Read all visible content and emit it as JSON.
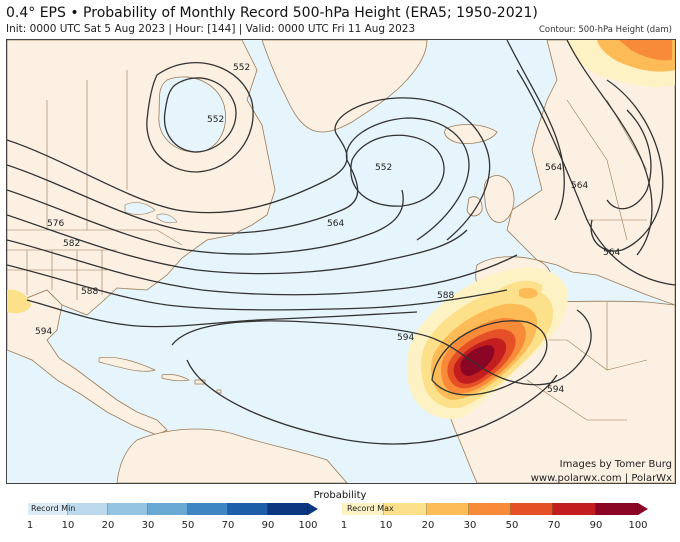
{
  "header": {
    "title": "0.4° EPS • Probability of Monthly Record 500-hPa Height (ERA5; 1950-2021)",
    "subtitle": "Init: 0000 UTC Sat 5 Aug 2023 | Hour: [144] | Valid: 0000 UTC Fri 11 Aug 2023",
    "contour_note": "Contour: 500-hPa Height (dam)"
  },
  "map": {
    "region": "North Atlantic, North America, Europe, North Africa",
    "colors": {
      "ocean": "#e6f4fb",
      "land": "#fbf0e2",
      "borders": "#9c7a56",
      "contours": "#333333"
    },
    "contour_labels": [
      "552",
      "552",
      "564",
      "564",
      "564",
      "576",
      "582",
      "588",
      "594",
      "594",
      "594",
      "552",
      "564",
      "588"
    ],
    "anomaly_region": "Northwest Africa / Iberia — highest probability (90-100%)"
  },
  "credits": {
    "line1": "Images by Tomer Burg",
    "line2": "www.polarwx.com | PolarWx"
  },
  "legend": {
    "title": "Probability",
    "min_label": "Record Min",
    "max_label": "Record Max",
    "ticks_left": [
      "1",
      "10",
      "20",
      "30",
      "50",
      "70",
      "90",
      "100"
    ],
    "ticks_right": [
      "1",
      "10",
      "20",
      "30",
      "50",
      "70",
      "90",
      "100"
    ],
    "min_colors": [
      "#dcecf6",
      "#bcd9ee",
      "#95c4e3",
      "#6ba9d5",
      "#3d86c3",
      "#1c5fa8",
      "#0a3780"
    ],
    "max_colors": [
      "#fdf2c4",
      "#fde08a",
      "#fdbb57",
      "#f88b3a",
      "#e55026",
      "#c21d1f",
      "#8a0624"
    ]
  }
}
